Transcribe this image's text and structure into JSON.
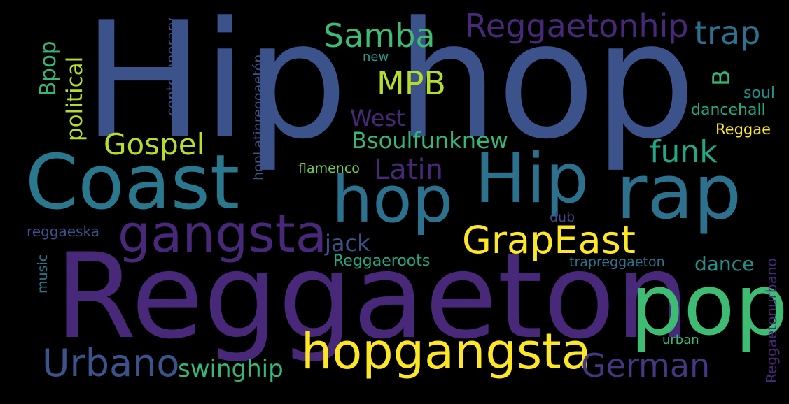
{
  "words": [
    {
      "text": "Hip hop",
      "color": "#3b528b"
    },
    {
      "text": "Reggaeton",
      "color": "#482878"
    },
    {
      "text": "Coast",
      "color": "#2a788e"
    },
    {
      "text": "Hip",
      "color": "#2c728e"
    },
    {
      "text": "rap",
      "color": "#2c728e"
    },
    {
      "text": "hop",
      "color": "#2c728e"
    },
    {
      "text": "pop",
      "color": "#3fbc73"
    },
    {
      "text": "gangsta",
      "color": "#482878"
    },
    {
      "text": "hopgangsta",
      "color": "#fde725"
    },
    {
      "text": "Urbano",
      "color": "#3b528b"
    },
    {
      "text": "German",
      "color": "#453781"
    },
    {
      "text": "GrapEast",
      "color": "#fde725"
    },
    {
      "text": "Samba",
      "color": "#3fbc73"
    },
    {
      "text": "Reggaetonhip",
      "color": "#482878"
    },
    {
      "text": "trap",
      "color": "#2c728e"
    },
    {
      "text": "MPB",
      "color": "#b5de2b"
    },
    {
      "text": "Gospel",
      "color": "#b5de2b"
    },
    {
      "text": "Latin",
      "color": "#482878"
    },
    {
      "text": "funk",
      "color": "#22a884"
    },
    {
      "text": "West",
      "color": "#482878"
    },
    {
      "text": "Bsoulfunknew",
      "color": "#35b779"
    },
    {
      "text": "swinghip",
      "color": "#35b779"
    },
    {
      "text": "jack",
      "color": "#3b528b"
    },
    {
      "text": "dance",
      "color": "#21918c"
    },
    {
      "text": "Reggaeroots",
      "color": "#22a884"
    },
    {
      "text": "B",
      "color": "#35b779"
    },
    {
      "text": "soul",
      "color": "#21918c"
    },
    {
      "text": "dancehall",
      "color": "#22a884"
    },
    {
      "text": "Reggae",
      "color": "#fde725"
    },
    {
      "text": "flamenco",
      "color": "#6ece58"
    },
    {
      "text": "dub",
      "color": "#3e4a89"
    },
    {
      "text": "reggaeska",
      "color": "#3b528b"
    },
    {
      "text": "trapreggaeton",
      "color": "#2c728e"
    },
    {
      "text": "urban",
      "color": "#35b779"
    },
    {
      "text": "new",
      "color": "#2a9d8f"
    },
    {
      "text": "political",
      "color": "#b5de2b"
    },
    {
      "text": "Bpop",
      "color": "#35b779"
    },
    {
      "text": "contemporary",
      "color": "#3b528b"
    },
    {
      "text": "hopLatinreggaetón",
      "color": "#3b528b"
    },
    {
      "text": "music",
      "color": "#2a788e"
    },
    {
      "text": "Reggaetonurbano",
      "color": "#482878"
    }
  ]
}
